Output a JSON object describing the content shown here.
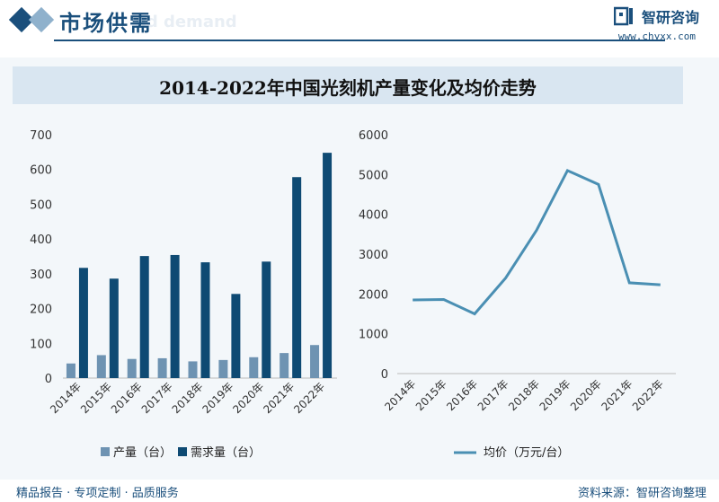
{
  "header": {
    "title": "市场供需",
    "subtitle_watermark": "nd demand",
    "brand_name": "智研咨询",
    "brand_url": "www.chyxx.com",
    "accent_color": "#1a4f7c"
  },
  "footer": {
    "left_text": "精品报告 · 专项定制 · 品质服务",
    "right_text": "资料来源：智研咨询整理"
  },
  "chart_title": "2014-2022年中国光刻机产量变化及均价走势",
  "chart_data": [
    {
      "type": "bar",
      "categories": [
        "2014年",
        "2015年",
        "2016年",
        "2017年",
        "2018年",
        "2019年",
        "2020年",
        "2021年",
        "2022年"
      ],
      "series": [
        {
          "name": "产量（台）",
          "values": [
            42,
            66,
            55,
            57,
            48,
            52,
            60,
            72,
            95
          ],
          "color": "#6e93b2"
        },
        {
          "name": "需求量（台）",
          "values": [
            317,
            286,
            351,
            354,
            333,
            242,
            335,
            578,
            648
          ],
          "color": "#0e4a73"
        }
      ],
      "yticks": [
        0,
        100,
        200,
        300,
        400,
        500,
        600,
        700
      ],
      "ylim": [
        0,
        700
      ],
      "legend": "bottom"
    },
    {
      "type": "line",
      "categories": [
        "2014年",
        "2015年",
        "2016年",
        "2017年",
        "2018年",
        "2019年",
        "2020年",
        "2021年",
        "2022年"
      ],
      "series": [
        {
          "name": "均价（万元/台）",
          "values": [
            1850,
            1860,
            1500,
            2400,
            3600,
            5100,
            4750,
            2280,
            2230
          ],
          "color": "#4a8fb3"
        }
      ],
      "yticks": [
        0,
        1000,
        2000,
        3000,
        4000,
        5000,
        6000
      ],
      "ylim": [
        0,
        6000
      ],
      "legend": "bottom"
    }
  ]
}
